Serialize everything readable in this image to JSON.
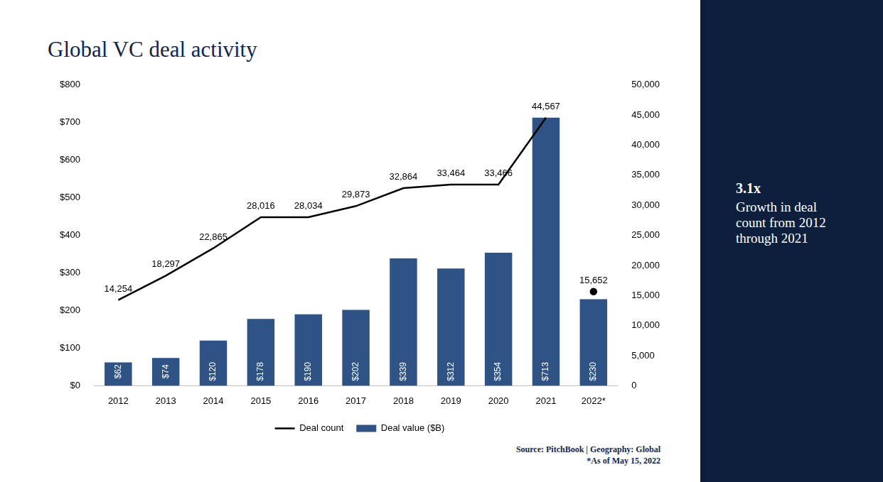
{
  "chart_data": {
    "type": "bar",
    "title": "Global VC deal activity",
    "categories": [
      "2012",
      "2013",
      "2014",
      "2015",
      "2016",
      "2017",
      "2018",
      "2019",
      "2020",
      "2021",
      "2022*"
    ],
    "series": [
      {
        "name": "Deal value ($B)",
        "type": "bar",
        "color": "#2e5384",
        "values": [
          62,
          74,
          120,
          178,
          190,
          202,
          339,
          312,
          354,
          713,
          230
        ],
        "value_labels": [
          "$62",
          "$74",
          "$120",
          "$178",
          "$190",
          "$202",
          "$339",
          "$312",
          "$354",
          "$713",
          "$230"
        ]
      },
      {
        "name": "Deal count",
        "type": "line",
        "color": "#000000",
        "axis": "y2",
        "line_style": "solid",
        "marker": "none",
        "values": [
          14254,
          18297,
          22865,
          28016,
          28034,
          29873,
          32864,
          33464,
          33466,
          44567,
          null
        ],
        "value_labels": [
          "14,254",
          "18,297",
          "22,865",
          "28,016",
          "28,034",
          "29,873",
          "32,864",
          "33,464",
          "33,466",
          "44,567",
          null
        ]
      },
      {
        "name": "Deal count",
        "type": "line",
        "color": "#000000",
        "axis": "y2",
        "line_style": "none",
        "marker": "circle",
        "values": [
          null,
          null,
          null,
          null,
          null,
          null,
          null,
          null,
          null,
          null,
          15652
        ],
        "value_labels": [
          null,
          null,
          null,
          null,
          null,
          null,
          null,
          null,
          null,
          null,
          "15,652"
        ]
      }
    ],
    "ylim": [
      0,
      800
    ],
    "yticks": [
      {
        "value": 0,
        "label": "$0"
      },
      {
        "value": 100,
        "label": "$100"
      },
      {
        "value": 200,
        "label": "$200"
      },
      {
        "value": 300,
        "label": "$300"
      },
      {
        "value": 400,
        "label": "$400"
      },
      {
        "value": 500,
        "label": "$500"
      },
      {
        "value": 600,
        "label": "$600"
      },
      {
        "value": 700,
        "label": "$700"
      },
      {
        "value": 800,
        "label": "$800"
      }
    ],
    "y2lim": [
      0,
      50000
    ],
    "y2ticks": [
      0,
      {
        "value": 5000,
        "label": "5,000"
      },
      {
        "value": 10000,
        "label": "10,000"
      },
      {
        "value": 15000,
        "label": "15,000"
      },
      {
        "value": 20000,
        "label": "20,000"
      },
      {
        "value": 25000,
        "label": "25,000"
      },
      {
        "value": 30000,
        "label": "30,000"
      },
      {
        "value": 35000,
        "label": "35,000"
      },
      {
        "value": 40000,
        "label": "40,000"
      },
      {
        "value": 45000,
        "label": "45,000"
      },
      {
        "value": 50000,
        "label": "50,000"
      }
    ],
    "grid": false,
    "legend": "bottom",
    "data_labels": true,
    "annotations": [
      "3.1x",
      "Growth in deal count from 2012 through 2021",
      "Source: PitchBook | Geography: Global",
      "*As of May 15, 2022"
    ]
  }
}
